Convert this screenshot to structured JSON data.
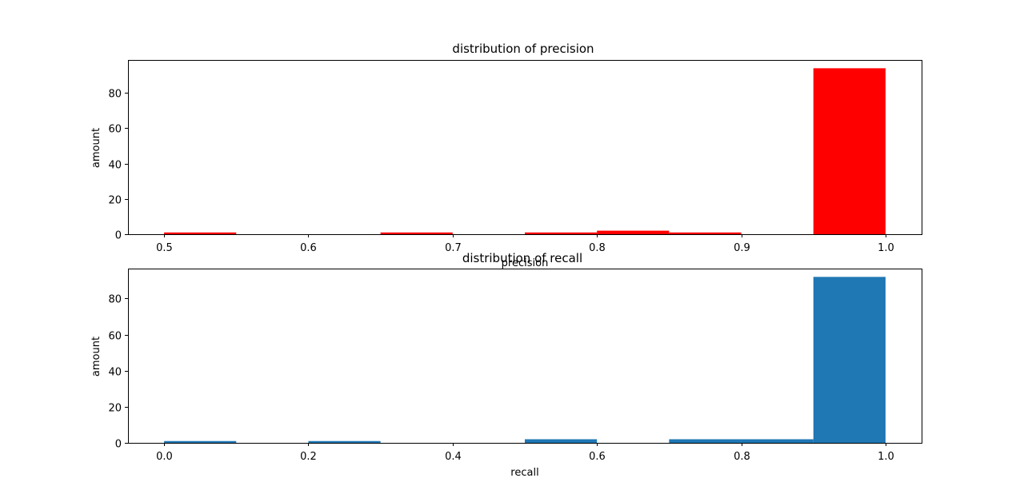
{
  "chart_data": [
    {
      "type": "bar",
      "title": "distribution of precision",
      "xlabel": "precision",
      "ylabel": "amount",
      "color": "#ff0000",
      "xlim": [
        0.475,
        1.025
      ],
      "ylim": [
        0,
        98.7
      ],
      "xticks": [
        0.5,
        0.6,
        0.7,
        0.8,
        0.9,
        1.0
      ],
      "xtick_labels": [
        "0.5",
        "0.6",
        "0.7",
        "0.8",
        "0.9",
        "1.0"
      ],
      "yticks": [
        0,
        20,
        40,
        60,
        80
      ],
      "ytick_labels": [
        "0",
        "20",
        "40",
        "60",
        "80"
      ],
      "grid": false,
      "bins": [
        {
          "x0": 0.5,
          "x1": 0.55,
          "value": 1
        },
        {
          "x0": 0.55,
          "x1": 0.6,
          "value": 0
        },
        {
          "x0": 0.6,
          "x1": 0.65,
          "value": 0
        },
        {
          "x0": 0.65,
          "x1": 0.7,
          "value": 1
        },
        {
          "x0": 0.7,
          "x1": 0.75,
          "value": 0
        },
        {
          "x0": 0.75,
          "x1": 0.8,
          "value": 1
        },
        {
          "x0": 0.8,
          "x1": 0.85,
          "value": 2
        },
        {
          "x0": 0.85,
          "x1": 0.9,
          "value": 1
        },
        {
          "x0": 0.9,
          "x1": 0.95,
          "value": 0
        },
        {
          "x0": 0.95,
          "x1": 1.0,
          "value": 94
        }
      ]
    },
    {
      "type": "bar",
      "title": "distribution of recall",
      "xlabel": "recall",
      "ylabel": "amount",
      "color": "#1f77b4",
      "xlim": [
        -0.05,
        1.05
      ],
      "ylim": [
        0,
        96.6
      ],
      "xticks": [
        0.0,
        0.2,
        0.4,
        0.6,
        0.8,
        1.0
      ],
      "xtick_labels": [
        "0.0",
        "0.2",
        "0.4",
        "0.6",
        "0.8",
        "1.0"
      ],
      "yticks": [
        0,
        20,
        40,
        60,
        80
      ],
      "ytick_labels": [
        "0",
        "20",
        "40",
        "60",
        "80"
      ],
      "grid": false,
      "bins": [
        {
          "x0": 0.0,
          "x1": 0.1,
          "value": 1
        },
        {
          "x0": 0.1,
          "x1": 0.2,
          "value": 0
        },
        {
          "x0": 0.2,
          "x1": 0.3,
          "value": 1
        },
        {
          "x0": 0.3,
          "x1": 0.4,
          "value": 0
        },
        {
          "x0": 0.4,
          "x1": 0.5,
          "value": 0
        },
        {
          "x0": 0.5,
          "x1": 0.6,
          "value": 2
        },
        {
          "x0": 0.6,
          "x1": 0.7,
          "value": 0
        },
        {
          "x0": 0.7,
          "x1": 0.8,
          "value": 2
        },
        {
          "x0": 0.8,
          "x1": 0.9,
          "value": 2
        },
        {
          "x0": 0.9,
          "x1": 1.0,
          "value": 92
        }
      ]
    }
  ]
}
